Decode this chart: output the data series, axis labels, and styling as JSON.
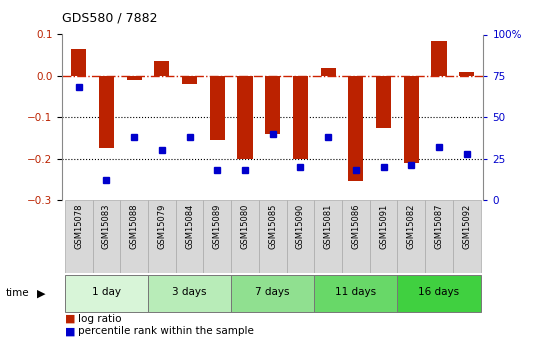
{
  "title": "GDS580 / 7882",
  "samples": [
    "GSM15078",
    "GSM15083",
    "GSM15088",
    "GSM15079",
    "GSM15084",
    "GSM15089",
    "GSM15080",
    "GSM15085",
    "GSM15090",
    "GSM15081",
    "GSM15086",
    "GSM15091",
    "GSM15082",
    "GSM15087",
    "GSM15092"
  ],
  "log_ratio": [
    0.065,
    -0.175,
    -0.01,
    0.035,
    -0.02,
    -0.155,
    -0.2,
    -0.14,
    -0.2,
    0.018,
    -0.255,
    -0.125,
    -0.21,
    0.085,
    0.01
  ],
  "percentile_rank": [
    68,
    12,
    38,
    30,
    38,
    18,
    18,
    40,
    20,
    38,
    18,
    20,
    21,
    32,
    28
  ],
  "groups": [
    {
      "label": "1 day",
      "indices": [
        0,
        1,
        2
      ],
      "color": "#d8f5d8"
    },
    {
      "label": "3 days",
      "indices": [
        3,
        4,
        5
      ],
      "color": "#b8ecb8"
    },
    {
      "label": "7 days",
      "indices": [
        6,
        7,
        8
      ],
      "color": "#90e090"
    },
    {
      "label": "11 days",
      "indices": [
        9,
        10,
        11
      ],
      "color": "#68d868"
    },
    {
      "label": "16 days",
      "indices": [
        12,
        13,
        14
      ],
      "color": "#40d040"
    }
  ],
  "ylim_left": [
    -0.3,
    0.1
  ],
  "ylim_right": [
    0,
    100
  ],
  "yticks_left": [
    -0.3,
    -0.2,
    -0.1,
    0.0,
    0.1
  ],
  "yticks_right": [
    0,
    25,
    50,
    75,
    100
  ],
  "bar_color": "#bb2200",
  "dot_color": "#0000cc",
  "hline_color": "#cc2200",
  "grid_color": "#000000",
  "label_bg": "#d8d8d8",
  "legend_items": [
    "log ratio",
    "percentile rank within the sample"
  ]
}
